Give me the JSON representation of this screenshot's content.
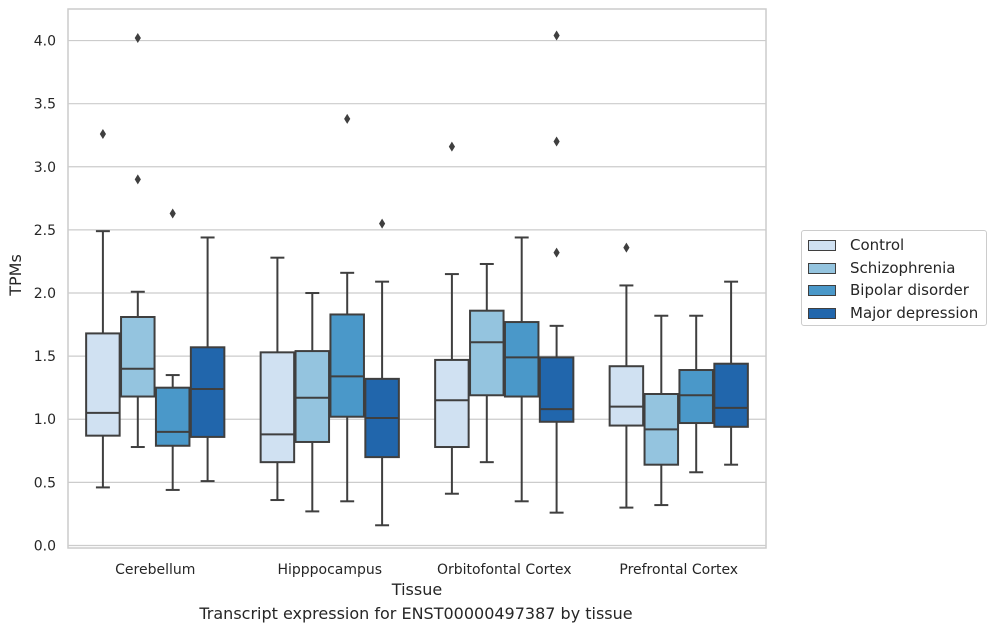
{
  "figure_caption": "Transcript expression for ENST00000497387 by tissue",
  "chart_data": {
    "type": "box",
    "title": "",
    "xlabel": "Tissue",
    "ylabel": "TPMs",
    "categories": [
      "Cerebellum",
      "Hipppocampus",
      "Orbitofontal Cortex",
      "Prefrontal Cortex"
    ],
    "ylim": [
      -0.02,
      4.25
    ],
    "yticks": [
      "0.0",
      "0.5",
      "1.0",
      "1.5",
      "2.0",
      "2.5",
      "3.0",
      "3.5",
      "4.0"
    ],
    "grid": true,
    "legend_placement": "right",
    "series": [
      {
        "name": "Control",
        "color": "#d0e1f2",
        "boxes": [
          {
            "whislo": 0.46,
            "q1": 0.87,
            "med": 1.05,
            "q3": 1.68,
            "whishi": 2.49,
            "fliers": [
              3.26
            ]
          },
          {
            "whislo": 0.36,
            "q1": 0.66,
            "med": 0.88,
            "q3": 1.53,
            "whishi": 2.28,
            "fliers": []
          },
          {
            "whislo": 0.41,
            "q1": 0.78,
            "med": 1.15,
            "q3": 1.47,
            "whishi": 2.15,
            "fliers": [
              3.16
            ]
          },
          {
            "whislo": 0.3,
            "q1": 0.95,
            "med": 1.1,
            "q3": 1.42,
            "whishi": 2.06,
            "fliers": [
              2.36
            ]
          }
        ]
      },
      {
        "name": "Schizophrenia",
        "color": "#94c4df",
        "boxes": [
          {
            "whislo": 0.78,
            "q1": 1.18,
            "med": 1.4,
            "q3": 1.81,
            "whishi": 2.01,
            "fliers": [
              4.02,
              2.9
            ]
          },
          {
            "whislo": 0.27,
            "q1": 0.82,
            "med": 1.17,
            "q3": 1.54,
            "whishi": 2.0,
            "fliers": []
          },
          {
            "whislo": 0.66,
            "q1": 1.19,
            "med": 1.61,
            "q3": 1.86,
            "whishi": 2.23,
            "fliers": []
          },
          {
            "whislo": 0.32,
            "q1": 0.64,
            "med": 0.92,
            "q3": 1.2,
            "whishi": 1.82,
            "fliers": []
          }
        ]
      },
      {
        "name": "Bipolar disorder",
        "color": "#4a98c9",
        "boxes": [
          {
            "whislo": 0.44,
            "q1": 0.79,
            "med": 0.9,
            "q3": 1.25,
            "whishi": 1.35,
            "fliers": [
              2.63
            ]
          },
          {
            "whislo": 0.35,
            "q1": 1.02,
            "med": 1.34,
            "q3": 1.83,
            "whishi": 2.16,
            "fliers": [
              3.38
            ]
          },
          {
            "whislo": 0.35,
            "q1": 1.18,
            "med": 1.49,
            "q3": 1.77,
            "whishi": 2.44,
            "fliers": []
          },
          {
            "whislo": 0.58,
            "q1": 0.97,
            "med": 1.19,
            "q3": 1.39,
            "whishi": 1.82,
            "fliers": []
          }
        ]
      },
      {
        "name": "Major depression",
        "color": "#2166ac",
        "boxes": [
          {
            "whislo": 0.51,
            "q1": 0.86,
            "med": 1.24,
            "q3": 1.57,
            "whishi": 2.44,
            "fliers": []
          },
          {
            "whislo": 0.16,
            "q1": 0.7,
            "med": 1.01,
            "q3": 1.32,
            "whishi": 2.09,
            "fliers": [
              2.55
            ]
          },
          {
            "whislo": 0.26,
            "q1": 0.98,
            "med": 1.08,
            "q3": 1.49,
            "whishi": 1.74,
            "fliers": [
              4.04,
              3.2,
              2.32
            ]
          },
          {
            "whislo": 0.64,
            "q1": 0.94,
            "med": 1.09,
            "q3": 1.44,
            "whishi": 2.09,
            "fliers": []
          }
        ]
      }
    ]
  }
}
